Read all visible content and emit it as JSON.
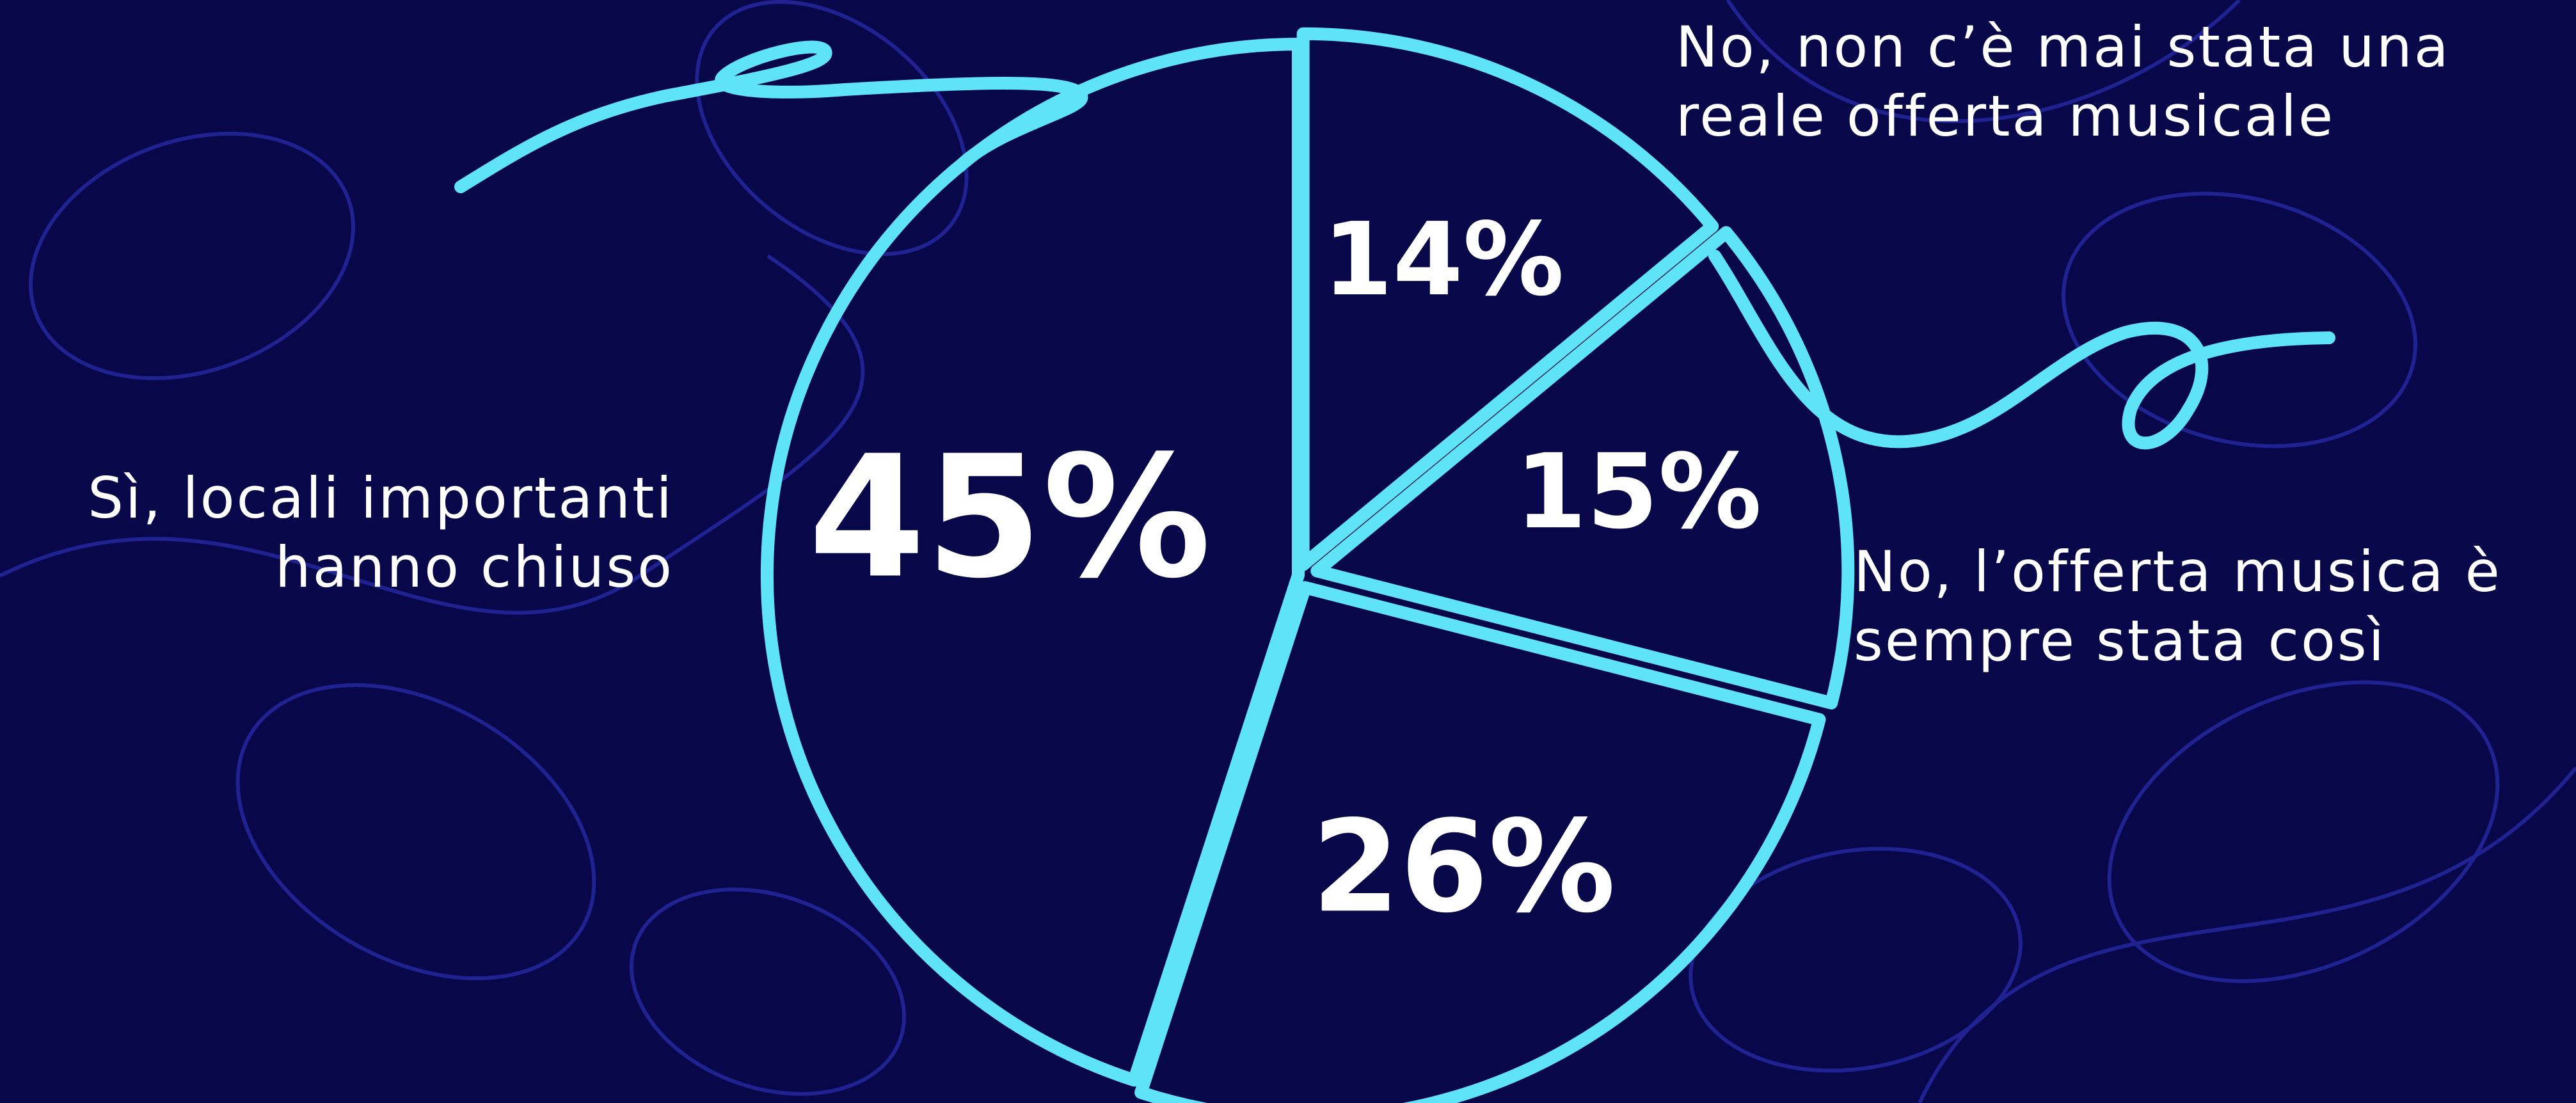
{
  "chart_data": {
    "type": "pie",
    "categories": [
      "No, non c’è mai stata una\nreale offerta musicale",
      "No, l’offerta musica è\nsempre stata così",
      null,
      "Sì, locali importanti\nhanno chiuso"
    ],
    "values": [
      14,
      15,
      26,
      45
    ],
    "value_labels": [
      "14%",
      "15%",
      "26%",
      "45%"
    ],
    "color": "#5ee3f7"
  }
}
